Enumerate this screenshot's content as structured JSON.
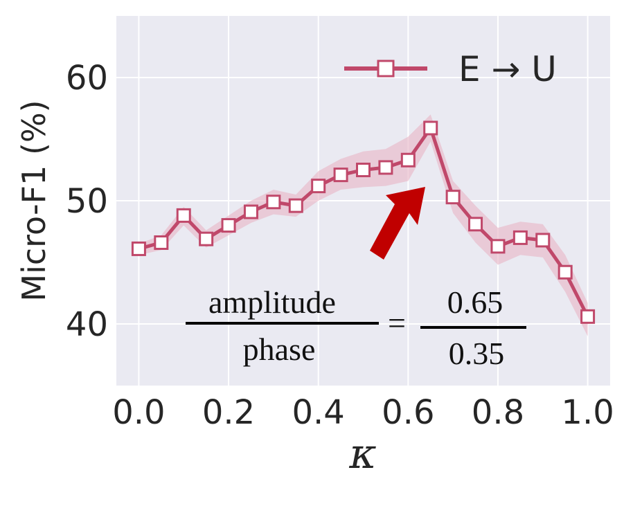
{
  "chart_data": {
    "type": "line",
    "xlabel": "κ",
    "ylabel": "Micro-F1 (%)",
    "xlim": [
      -0.05,
      1.05
    ],
    "ylim": [
      35,
      65
    ],
    "xticks": [
      0.0,
      0.2,
      0.4,
      0.6,
      0.8,
      1.0
    ],
    "xtick_labels": [
      "0.0",
      "0.2",
      "0.4",
      "0.6",
      "0.8",
      "1.0"
    ],
    "yticks": [
      40,
      50,
      60
    ],
    "ytick_labels": [
      "40",
      "50",
      "60"
    ],
    "grid": true,
    "legend_position": "top-right",
    "series": [
      {
        "name": "E → U",
        "color": "#c0486a",
        "band_color": "#e8b4c5",
        "marker": "square",
        "x": [
          0.0,
          0.05,
          0.1,
          0.15,
          0.2,
          0.25,
          0.3,
          0.35,
          0.4,
          0.45,
          0.5,
          0.55,
          0.6,
          0.65,
          0.7,
          0.75,
          0.8,
          0.85,
          0.9,
          0.95,
          1.0
        ],
        "values": [
          46.1,
          46.6,
          48.8,
          46.9,
          48.0,
          49.1,
          49.9,
          49.6,
          51.2,
          52.1,
          52.5,
          52.7,
          53.3,
          55.9,
          50.3,
          48.1,
          46.3,
          47.0,
          46.8,
          44.2,
          40.6
        ],
        "upper": [
          46.5,
          47.2,
          49.5,
          47.6,
          48.8,
          50.0,
          50.9,
          50.5,
          52.4,
          53.4,
          54.0,
          54.2,
          55.2,
          57.0,
          51.6,
          49.6,
          47.8,
          48.3,
          48.1,
          45.6,
          41.7
        ],
        "lower": [
          45.6,
          46.0,
          48.0,
          46.2,
          47.2,
          48.2,
          48.9,
          48.7,
          50.0,
          50.9,
          51.1,
          51.2,
          51.6,
          54.8,
          49.0,
          46.6,
          44.8,
          45.6,
          45.4,
          42.6,
          39.0
        ]
      }
    ],
    "annotation": {
      "numerator_left": "amplitude",
      "denominator_left": "phase",
      "equals": "=",
      "numerator_right": "0.65",
      "denominator_right": "0.35"
    },
    "arrow_color": "#c00000"
  }
}
